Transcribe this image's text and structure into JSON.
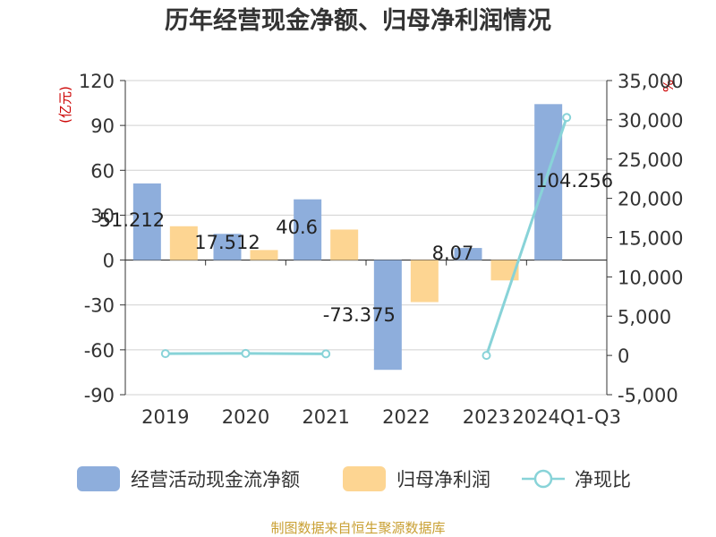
{
  "chart_data": {
    "type": "bar",
    "title": "历年经营现金净额、归母净利润情况",
    "left_unit": "(亿元)",
    "right_unit": "%",
    "categories": [
      "2019",
      "2020",
      "2021",
      "2022",
      "2023",
      "2024Q1-Q3"
    ],
    "left_axis": {
      "min": -90,
      "max": 120,
      "ticks": [
        "120",
        "90",
        "60",
        "30",
        "0",
        "-30",
        "-60",
        "-90"
      ]
    },
    "right_axis": {
      "min": -5000,
      "max": 35000,
      "ticks": [
        "35,000",
        "30,000",
        "25,000",
        "20,000",
        "15,000",
        "10,000",
        "5,000",
        "0",
        "-5,000"
      ]
    },
    "series": [
      {
        "name": "经营活动现金流净额",
        "kind": "bar",
        "color": "#8eaedc",
        "values": [
          51.212,
          17.512,
          40.6,
          -73.375,
          8.07,
          104.256
        ],
        "labels": [
          "51.212",
          "17.512",
          "40.6",
          "-73.375",
          "8.07",
          "104.256"
        ]
      },
      {
        "name": "归母净利润",
        "kind": "bar",
        "color": "#fdd592",
        "values": [
          22.6,
          6.7,
          20.4,
          -28.1,
          -13.6,
          null
        ]
      },
      {
        "name": "净现比",
        "kind": "line",
        "color": "#88d3d8",
        "values": [
          226.6,
          261.4,
          199.0,
          null,
          0,
          30302
        ]
      }
    ],
    "source": "制图数据来自恒生聚源数据库"
  }
}
